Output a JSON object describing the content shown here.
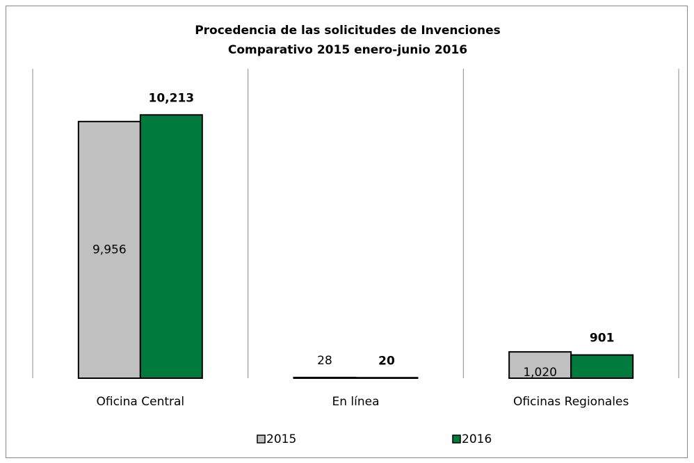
{
  "chart_data": {
    "type": "bar",
    "title": "Procedencia de las solicitudes de Invenciones",
    "subtitle": "Comparativo 2015 enero-junio 2016",
    "categories": [
      "Oficina Central",
      "En línea",
      "Oficinas Regionales"
    ],
    "series": [
      {
        "name": "2015",
        "color": "#c0c0c0",
        "values": [
          9956,
          28,
          1020
        ],
        "value_labels": [
          "9,956",
          "28",
          "1,020"
        ]
      },
      {
        "name": "2016",
        "color": "#007a3d",
        "values": [
          10213,
          20,
          901
        ],
        "value_labels": [
          "10,213",
          "20",
          "901"
        ]
      }
    ],
    "ylim": [
      0,
      12000
    ]
  }
}
